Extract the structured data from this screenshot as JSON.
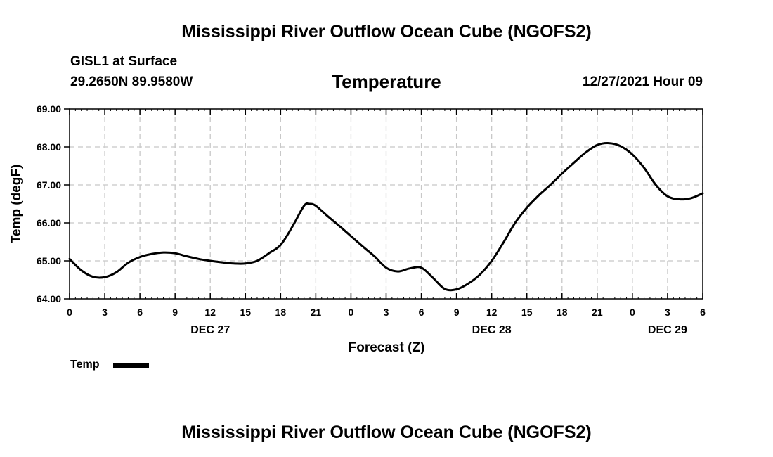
{
  "header": {
    "title": "Mississippi River Outflow Ocean Cube (NGOFS2)",
    "station": "GISL1 at Surface",
    "coords": "29.2650N  89.9580W",
    "datetime": "12/27/2021 Hour 09"
  },
  "footer": {
    "title": "Mississippi River Outflow Ocean Cube (NGOFS2)"
  },
  "chart_data": {
    "type": "line",
    "title": "Temperature",
    "xlabel": "Forecast (Z)",
    "ylabel": "Temp (degF)",
    "ylim": [
      64.0,
      69.0
    ],
    "xlim": [
      0,
      54
    ],
    "grid": true,
    "y_ticks": [
      64.0,
      65.0,
      66.0,
      67.0,
      68.0,
      69.0
    ],
    "y_tick_labels": [
      "64.00",
      "65.00",
      "66.00",
      "67.00",
      "68.00",
      "69.00"
    ],
    "x_ticks": [
      0,
      3,
      6,
      9,
      12,
      15,
      18,
      21,
      24,
      27,
      30,
      33,
      36,
      39,
      42,
      45,
      48,
      51,
      54
    ],
    "x_tick_labels": [
      "0",
      "3",
      "6",
      "9",
      "12",
      "15",
      "18",
      "21",
      "0",
      "3",
      "6",
      "9",
      "12",
      "15",
      "18",
      "21",
      "0",
      "3",
      "6"
    ],
    "day_labels": [
      {
        "x": 12,
        "label": "DEC 27"
      },
      {
        "x": 36,
        "label": "DEC 28"
      },
      {
        "x": 51,
        "label": "DEC 29"
      }
    ],
    "legend": {
      "label": "Temp",
      "position": "bottom-left"
    },
    "series": [
      {
        "name": "Temp",
        "x": [
          0,
          1,
          2,
          3,
          4,
          5,
          6,
          7,
          8,
          9,
          10,
          11,
          12,
          13,
          14,
          15,
          16,
          17,
          18,
          19,
          20,
          20.5,
          21,
          22,
          23,
          24,
          25,
          26,
          27,
          28,
          29,
          30,
          31,
          32,
          33,
          34,
          35,
          36,
          37,
          38,
          39,
          40,
          41,
          42,
          43,
          44,
          45,
          46,
          47,
          48,
          49,
          50,
          51,
          52,
          53,
          54
        ],
        "y": [
          65.05,
          64.75,
          64.58,
          64.57,
          64.7,
          64.95,
          65.1,
          65.18,
          65.22,
          65.2,
          65.12,
          65.05,
          65.0,
          64.96,
          64.93,
          64.93,
          65.0,
          65.2,
          65.42,
          65.9,
          66.45,
          66.5,
          66.45,
          66.18,
          65.92,
          65.65,
          65.38,
          65.12,
          64.82,
          64.72,
          64.8,
          64.82,
          64.55,
          64.26,
          64.25,
          64.4,
          64.64,
          65.0,
          65.48,
          66.0,
          66.4,
          66.72,
          67.0,
          67.3,
          67.58,
          67.85,
          68.05,
          68.1,
          68.02,
          67.8,
          67.45,
          67.0,
          66.7,
          66.62,
          66.65,
          66.78
        ]
      }
    ]
  }
}
